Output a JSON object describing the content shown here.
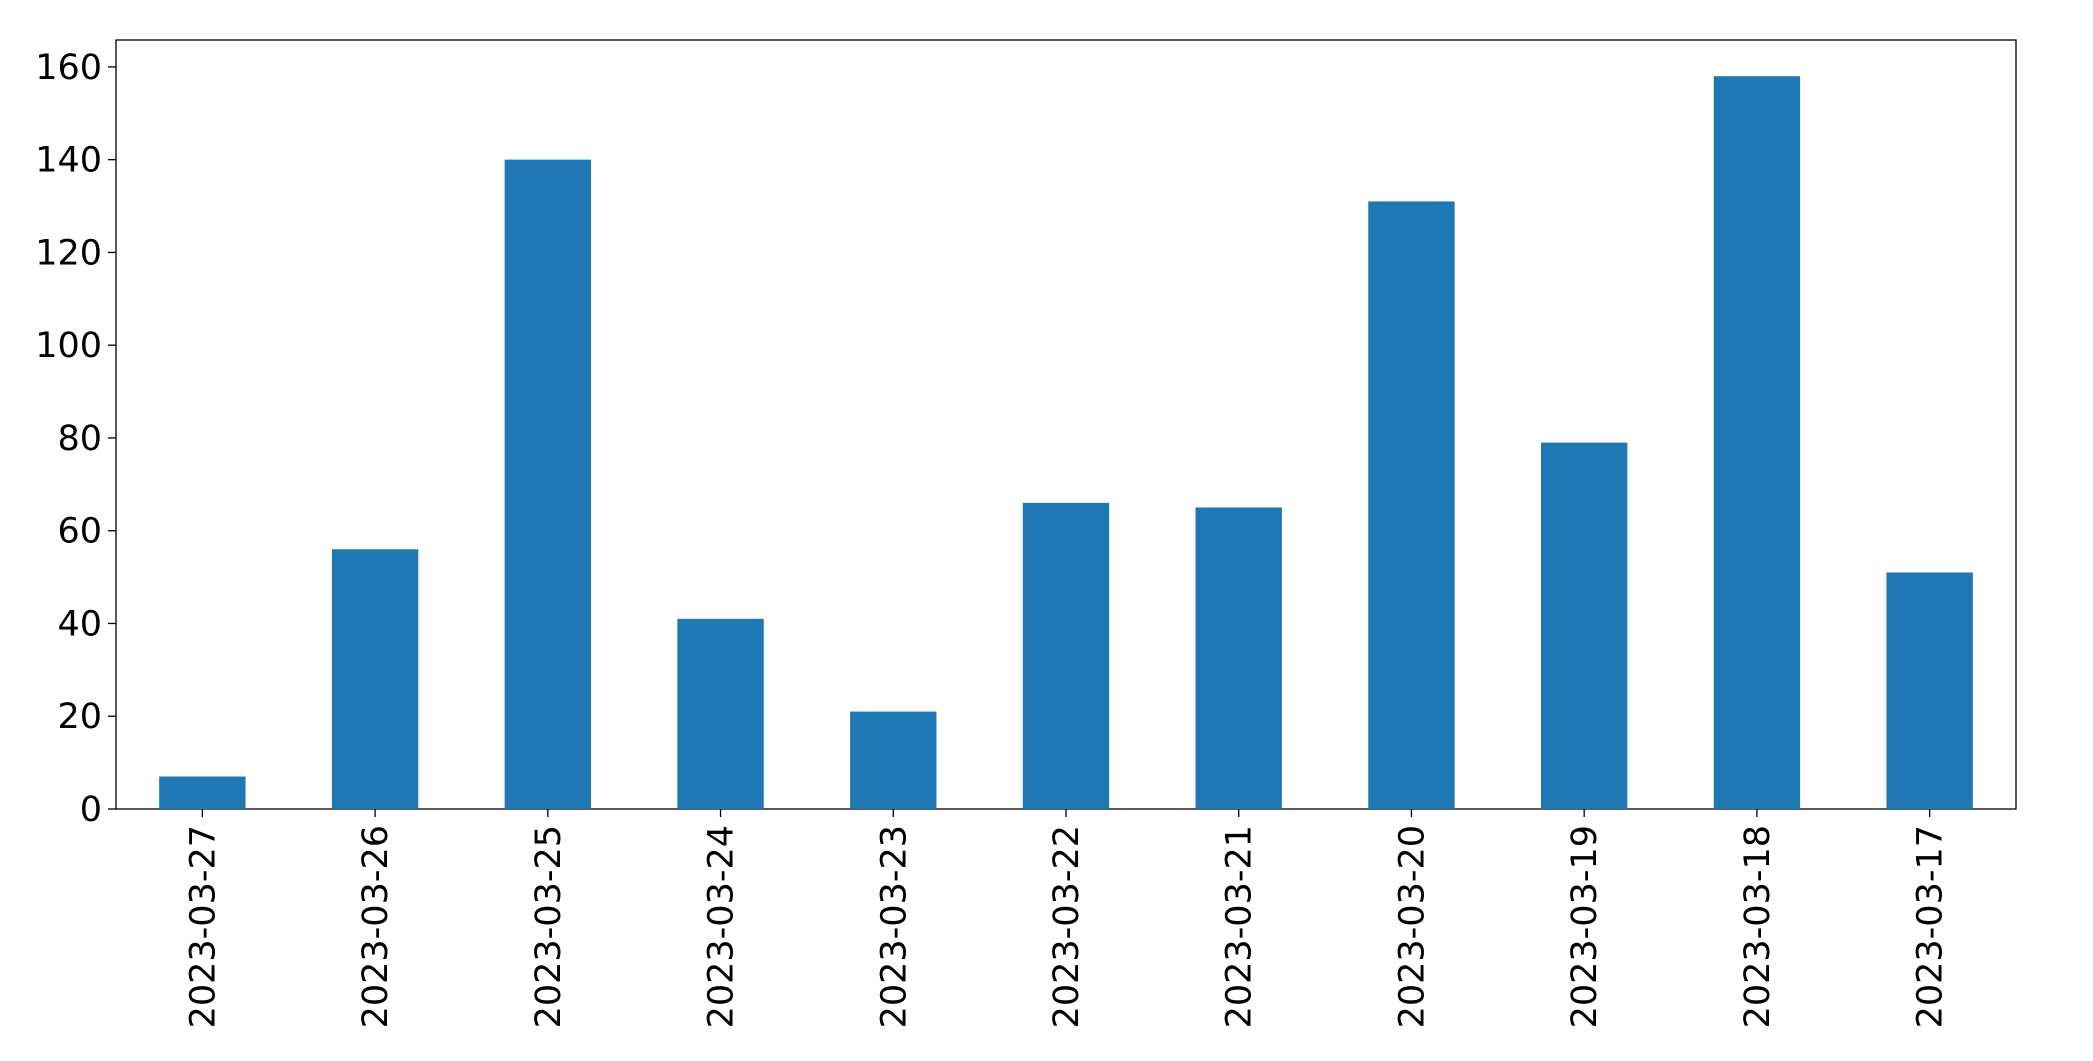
{
  "chart_data": {
    "type": "bar",
    "categories": [
      "2023-03-27",
      "2023-03-26",
      "2023-03-25",
      "2023-03-24",
      "2023-03-23",
      "2023-03-22",
      "2023-03-21",
      "2023-03-20",
      "2023-03-19",
      "2023-03-18",
      "2023-03-17"
    ],
    "values": [
      7,
      56,
      140,
      41,
      21,
      66,
      65,
      131,
      79,
      158,
      51
    ],
    "color": "#1f77b4",
    "ylim": [
      0,
      165.8
    ],
    "yticks": [
      0,
      20,
      40,
      60,
      80,
      100,
      120,
      140,
      160
    ],
    "grid": false
  }
}
